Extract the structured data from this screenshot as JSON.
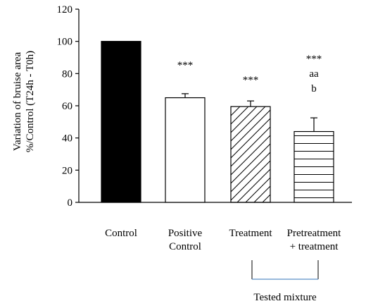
{
  "chart_data": {
    "type": "bar",
    "categories": [
      [
        "Control"
      ],
      [
        "Positive",
        "Control"
      ],
      [
        "Treatment"
      ],
      [
        "Pretreatment",
        "+ treatment"
      ]
    ],
    "values": [
      100,
      65,
      59.5,
      44
    ],
    "errors": [
      0,
      2.5,
      3.5,
      8.5
    ],
    "fills": [
      "solid",
      "white",
      "diagonal",
      "horizontal"
    ],
    "annotations": [
      [],
      [
        "***"
      ],
      [
        "***"
      ],
      [
        "***",
        "aa",
        "b"
      ]
    ],
    "ylabel": [
      "Variation of bruise area",
      "%/Control (T24h - T0h)"
    ],
    "ylim": [
      0,
      120
    ],
    "yticks": [
      0,
      20,
      40,
      60,
      80,
      100,
      120
    ],
    "group_bracket": {
      "label": "Tested mixture",
      "spans": [
        2,
        3
      ],
      "color": "#5b8fc7"
    },
    "bar_color": "#000000"
  }
}
